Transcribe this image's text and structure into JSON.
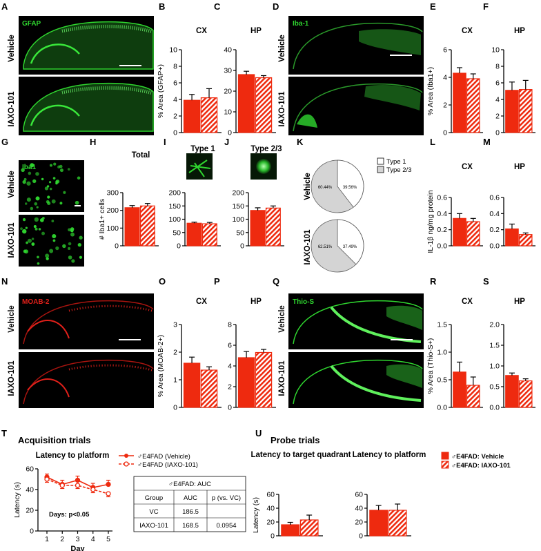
{
  "colors": {
    "red": "#ee2a0f",
    "fluor_green": "#2fd62f",
    "fluor_red": "#e0201a",
    "pie_gray": "#d4d4d4"
  },
  "panel_letters": {
    "A": "A",
    "B": "B",
    "C": "C",
    "D": "D",
    "E": "E",
    "F": "F",
    "G": "G",
    "H": "H",
    "I": "I",
    "J": "J",
    "K": "K",
    "L": "L",
    "M": "M",
    "N": "N",
    "O": "O",
    "P": "P",
    "Q": "Q",
    "R": "R",
    "S": "S",
    "T": "T",
    "U": "U"
  },
  "micrographs": {
    "vehicle": "Vehicle",
    "iaxo": "IAXO-101",
    "A_label": "GFAP",
    "D_label": "Iba-1",
    "G_label": "Iba1",
    "N_label": "MOAB-2",
    "Q_label": "Thio-S"
  },
  "chart_data": [
    {
      "id": "B",
      "type": "bar",
      "title": "CX",
      "ylabel": "% Area (GFAP+)",
      "ylim": [
        0,
        10
      ],
      "yticks": [
        0,
        2,
        4,
        6,
        8,
        10
      ],
      "categories": [
        "Vehicle",
        "IAXO-101"
      ],
      "values": [
        3.9,
        4.2
      ],
      "errors": [
        0.7,
        1.1
      ]
    },
    {
      "id": "C",
      "type": "bar",
      "title": "HP",
      "ylabel": "",
      "ylim": [
        0,
        40
      ],
      "yticks": [
        0,
        10,
        20,
        30,
        40
      ],
      "categories": [
        "Vehicle",
        "IAXO-101"
      ],
      "values": [
        28,
        26.5
      ],
      "errors": [
        1.6,
        1
      ]
    },
    {
      "id": "E",
      "type": "bar",
      "title": "CX",
      "ylabel": "% Area (Iba1+)",
      "ylim": [
        0,
        6
      ],
      "yticks": [
        0,
        2,
        4,
        6
      ],
      "categories": [
        "Vehicle",
        "IAXO-101"
      ],
      "values": [
        4.3,
        3.9
      ],
      "errors": [
        0.4,
        0.35
      ]
    },
    {
      "id": "F",
      "type": "bar",
      "title": "HP",
      "ylabel": "",
      "ylim": [
        0,
        10
      ],
      "yticks": [
        0,
        2,
        4,
        6,
        8,
        10
      ],
      "categories": [
        "Vehicle",
        "IAXO-101"
      ],
      "values": [
        5.1,
        5.2
      ],
      "errors": [
        1,
        1.1
      ]
    },
    {
      "id": "H",
      "type": "bar",
      "title": "Total",
      "ylabel": "# Iba1+ cells",
      "ylim": [
        0,
        300
      ],
      "yticks": [
        0,
        100,
        200,
        300
      ],
      "categories": [
        "Vehicle",
        "IAXO-101"
      ],
      "values": [
        215,
        225
      ],
      "errors": [
        12,
        14
      ]
    },
    {
      "id": "I",
      "type": "bar",
      "title": "Type 1",
      "ylabel": "",
      "ylim": [
        0,
        200
      ],
      "yticks": [
        0,
        50,
        100,
        150,
        200
      ],
      "categories": [
        "Vehicle",
        "IAXO-101"
      ],
      "values": [
        85,
        83
      ],
      "errors": [
        4,
        5
      ]
    },
    {
      "id": "J",
      "type": "bar",
      "title": "Type 2/3",
      "ylabel": "",
      "ylim": [
        0,
        200
      ],
      "yticks": [
        0,
        50,
        100,
        150,
        200
      ],
      "categories": [
        "Vehicle",
        "IAXO-101"
      ],
      "values": [
        133,
        142
      ],
      "errors": [
        10,
        8
      ]
    },
    {
      "id": "K",
      "type": "pie",
      "legend": [
        "Type 1",
        "Type 2/3"
      ],
      "slices": [
        {
          "group": "Vehicle",
          "type1": 39.56,
          "type23": 60.44,
          "label1": "39.56%",
          "label23": "60.44%"
        },
        {
          "group": "IAXO-101",
          "type1": 37.49,
          "type23": 62.51,
          "label1": "37.49%",
          "label23": "62.51%"
        }
      ]
    },
    {
      "id": "L",
      "type": "bar",
      "title": "CX",
      "ylabel": "IL-1β ng/mg protein",
      "ylim": [
        0,
        0.6
      ],
      "yticks": [
        0,
        0.2,
        0.4,
        0.6
      ],
      "ytick_labels": [
        "0.0",
        "0.2",
        "0.4",
        "0.6"
      ],
      "categories": [
        "Vehicle",
        "IAXO-101"
      ],
      "values": [
        0.34,
        0.3
      ],
      "errors": [
        0.06,
        0.04
      ]
    },
    {
      "id": "M",
      "type": "bar",
      "title": "HP",
      "ylabel": "",
      "ylim": [
        0,
        0.6
      ],
      "yticks": [
        0,
        0.2,
        0.4,
        0.6
      ],
      "ytick_labels": [
        "0.0",
        "0.2",
        "0.4",
        "0.6"
      ],
      "categories": [
        "Vehicle",
        "IAXO-101"
      ],
      "values": [
        0.21,
        0.14
      ],
      "errors": [
        0.06,
        0.02
      ]
    },
    {
      "id": "O",
      "type": "bar",
      "title": "CX",
      "ylabel": "% Area (MOAB-2+)",
      "ylim": [
        0,
        3
      ],
      "yticks": [
        0,
        1,
        2,
        3
      ],
      "categories": [
        "Vehicle",
        "IAXO-101"
      ],
      "values": [
        1.6,
        1.35
      ],
      "errors": [
        0.22,
        0.12
      ]
    },
    {
      "id": "P",
      "type": "bar",
      "title": "HP",
      "ylabel": "",
      "ylim": [
        0,
        8
      ],
      "yticks": [
        0,
        2,
        4,
        6,
        8
      ],
      "categories": [
        "Vehicle",
        "IAXO-101"
      ],
      "values": [
        4.8,
        5.3
      ],
      "errors": [
        0.6,
        0.3
      ]
    },
    {
      "id": "R",
      "type": "bar",
      "title": "CX",
      "ylabel": "% Area (Thio-S+)",
      "ylim": [
        0,
        1.5
      ],
      "yticks": [
        0,
        0.5,
        1,
        1.5
      ],
      "ytick_labels": [
        "0.0",
        "0.5",
        "1.0",
        "1.5"
      ],
      "categories": [
        "Vehicle",
        "IAXO-101"
      ],
      "values": [
        0.64,
        0.4
      ],
      "errors": [
        0.18,
        0.15
      ]
    },
    {
      "id": "S",
      "type": "bar",
      "title": "HP",
      "ylabel": "",
      "ylim": [
        0,
        2
      ],
      "yticks": [
        0,
        0.5,
        1,
        1.5,
        2
      ],
      "ytick_labels": [
        "0.0",
        "0.5",
        "1.0",
        "1.5",
        "2.0"
      ],
      "categories": [
        "Vehicle",
        "IAXO-101"
      ],
      "values": [
        0.77,
        0.64
      ],
      "errors": [
        0.06,
        0.05
      ]
    },
    {
      "id": "T",
      "type": "line",
      "section_title": "Acquisition trials",
      "title": "Latency to platform",
      "xlabel": "Day",
      "ylabel": "Latency (s)",
      "x": [
        1,
        2,
        3,
        4,
        5
      ],
      "ylim": [
        0,
        60
      ],
      "yticks": [
        0,
        20,
        40,
        60
      ],
      "series": [
        {
          "name": "♂E4FAD (Vehicle)",
          "values": [
            52,
            45,
            49,
            42,
            45
          ],
          "errors": [
            3,
            4,
            4,
            4,
            4
          ]
        },
        {
          "name": "♂E4FAD (IAXO-101)",
          "values": [
            50,
            44,
            44,
            40,
            36
          ],
          "errors": [
            3,
            3,
            3,
            3,
            3
          ]
        }
      ],
      "annotation": "Days: p<0.05",
      "table": {
        "title": "♂E4FAD: AUC",
        "headers": [
          "Group",
          "AUC",
          "p (vs. VC)"
        ],
        "rows": [
          [
            "VC",
            "186.5",
            ""
          ],
          [
            "IAXO-101",
            "168.5",
            "0.0954"
          ]
        ]
      }
    },
    {
      "id": "U1",
      "type": "bar",
      "section_title": "Probe trials",
      "title": "Latency to target quadrant",
      "ylabel": "Latency (s)",
      "ylim": [
        0,
        60
      ],
      "yticks": [
        0,
        20,
        40,
        60
      ],
      "categories": [
        "Vehicle",
        "IAXO-101"
      ],
      "values": [
        16,
        23
      ],
      "errors": [
        3.5,
        7
      ]
    },
    {
      "id": "U2",
      "type": "bar",
      "title": "Latency to platform",
      "ylabel": "",
      "ylim": [
        0,
        60
      ],
      "yticks": [
        0,
        20,
        40,
        60
      ],
      "categories": [
        "Vehicle",
        "IAXO-101"
      ],
      "values": [
        37,
        37
      ],
      "errors": [
        7,
        9
      ],
      "legend": [
        "♂E4FAD: Vehicle",
        "♂E4FAD: IAXO-101"
      ]
    }
  ]
}
